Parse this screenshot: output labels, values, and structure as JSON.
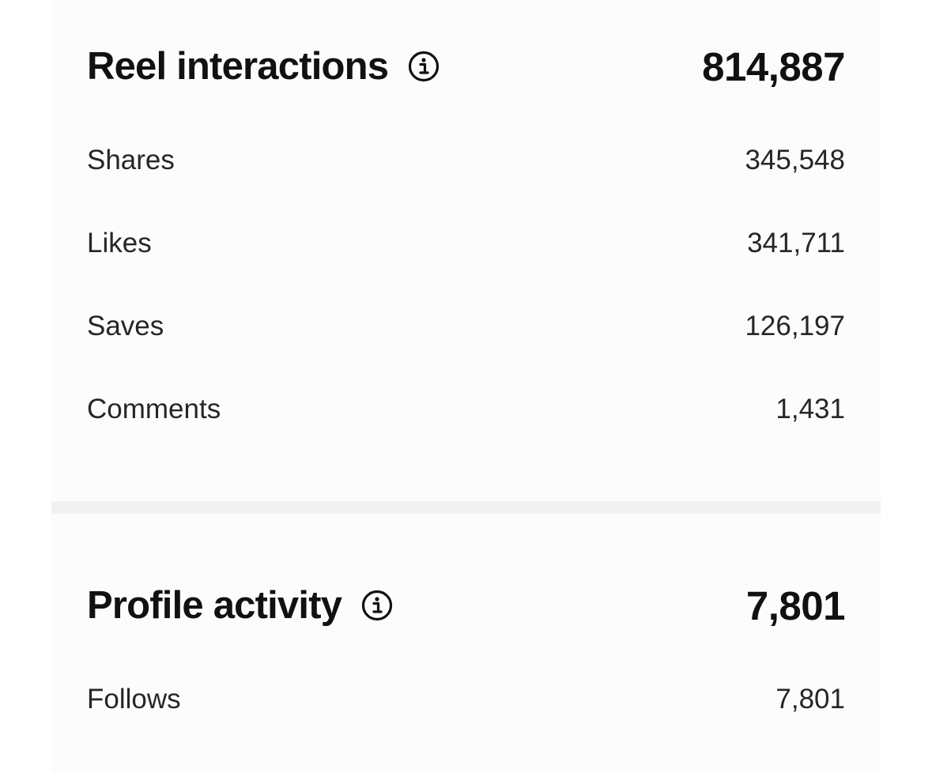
{
  "reel_interactions": {
    "title": "Reel interactions",
    "info_icon": "info-circle-icon",
    "total": "814,887",
    "rows": [
      {
        "label": "Shares",
        "value": "345,548"
      },
      {
        "label": "Likes",
        "value": "341,711"
      },
      {
        "label": "Saves",
        "value": "126,197"
      },
      {
        "label": "Comments",
        "value": "1,431"
      }
    ]
  },
  "profile_activity": {
    "title": "Profile activity",
    "info_icon": "info-circle-icon",
    "total": "7,801",
    "rows": [
      {
        "label": "Follows",
        "value": "7,801"
      }
    ]
  },
  "colors": {
    "text": "#111111",
    "secondary_text": "#262626",
    "panel_bg": "#fcfcfd",
    "divider": "#f1f1f3"
  }
}
